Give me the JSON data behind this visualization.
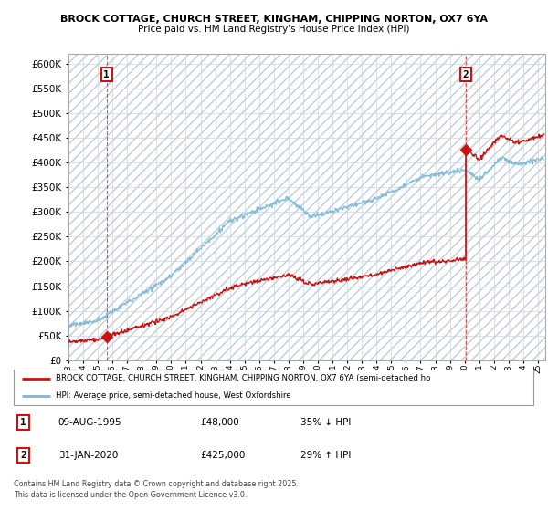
{
  "title1": "BROCK COTTAGE, CHURCH STREET, KINGHAM, CHIPPING NORTON, OX7 6YA",
  "title2": "Price paid vs. HM Land Registry's House Price Index (HPI)",
  "ylim": [
    0,
    620000
  ],
  "yticks": [
    0,
    50000,
    100000,
    150000,
    200000,
    250000,
    300000,
    350000,
    400000,
    450000,
    500000,
    550000,
    600000
  ],
  "hpi_color": "#7ab8d8",
  "price_color": "#cc1111",
  "point1_date": "09-AUG-1995",
  "point1_price": 48000,
  "point1_pct": "35% ↓ HPI",
  "point2_date": "31-JAN-2020",
  "point2_price": 425000,
  "point2_pct": "29% ↑ HPI",
  "legend_line1": "BROCK COTTAGE, CHURCH STREET, KINGHAM, CHIPPING NORTON, OX7 6YA (semi-detached ho",
  "legend_line2": "HPI: Average price, semi-detached house, West Oxfordshire",
  "footer": "Contains HM Land Registry data © Crown copyright and database right 2025.\nThis data is licensed under the Open Government Licence v3.0.",
  "grid_color": "#c8d8e8",
  "vline1_x": 1995.6,
  "vline2_x": 2020.08,
  "xlim_left": 1993.0,
  "xlim_right": 2025.5
}
